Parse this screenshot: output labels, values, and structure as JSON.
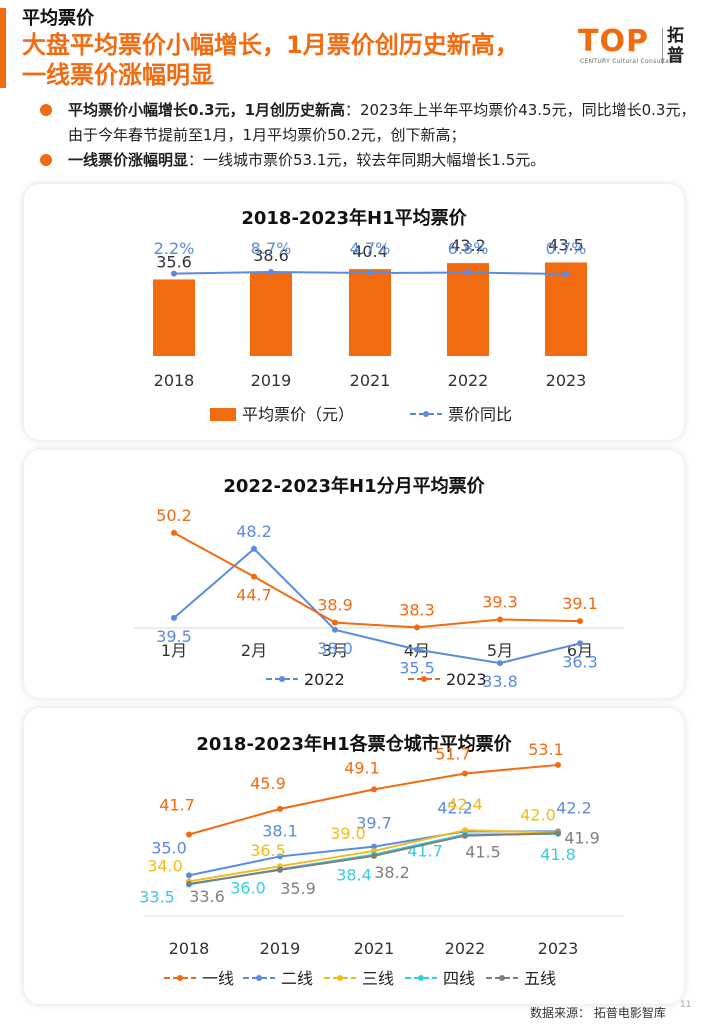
{
  "header": {
    "section": "平均票价",
    "headline_line1": "大盘平均票价小幅增长，1月票价创历史新高，",
    "headline_line2": "一线票价涨幅明显"
  },
  "logo": {
    "word": "TOP",
    "sub": "CENTURY Cultural Consultation",
    "cn": "拓普"
  },
  "bullets": [
    {
      "bold": "平均票价小幅增长0.3元，1月创历史新高",
      "text": "：2023年上半年平均票价43.5元，同比增长0.3元，由于今年春节提前至1月，1月平均票价50.2元，创下新高；"
    },
    {
      "bold": "一线票价涨幅明显",
      "text": "：一线城市票价53.1元，较去年同期大幅增长1.5元。"
    }
  ],
  "colors": {
    "orange": "#F26B10",
    "blue": "#5B8BE0",
    "yellow": "#F2BC1A",
    "cyan": "#35CDE0",
    "gray": "#7F7F7F"
  },
  "chart_data": [
    {
      "type": "bar",
      "title": "2018-2023年H1平均票价",
      "categories": [
        "2018",
        "2019",
        "2021",
        "2022",
        "2023"
      ],
      "series": [
        {
          "name": "平均票价（元）",
          "values": [
            35.6,
            38.6,
            40.4,
            43.2,
            43.5
          ],
          "labels": [
            "35.6",
            "38.6",
            "40.4",
            "43.2",
            "43.5"
          ]
        },
        {
          "name": "票价同比",
          "values": [
            2.2,
            8.7,
            4.7,
            6.8,
            0.7
          ],
          "labels": [
            "2.2%",
            "8.7%",
            "4.7%",
            "6.8%",
            "0.7%"
          ]
        }
      ],
      "legend": "bottom"
    },
    {
      "type": "line",
      "title": "2022-2023年H1分月平均票价",
      "categories": [
        "1月",
        "2月",
        "3月",
        "4月",
        "5月",
        "6月"
      ],
      "series": [
        {
          "name": "2022",
          "values": [
            39.5,
            48.2,
            38.0,
            35.5,
            33.8,
            36.3
          ],
          "labels": [
            "39.5",
            "48.2",
            "38.0",
            "35.5",
            "33.8",
            "36.3"
          ]
        },
        {
          "name": "2023",
          "values": [
            50.2,
            44.7,
            38.9,
            38.3,
            39.3,
            39.1
          ],
          "labels": [
            "50.2",
            "44.7",
            "38.9",
            "38.3",
            "39.3",
            "39.1"
          ]
        }
      ],
      "legend": "bottom"
    },
    {
      "type": "line",
      "title": "2018-2023年H1各票仓城市平均票价",
      "categories": [
        "2018",
        "2019",
        "2021",
        "2022",
        "2023"
      ],
      "series": [
        {
          "name": "一线",
          "values": [
            41.7,
            45.9,
            49.1,
            51.7,
            53.1
          ],
          "labels": [
            "41.7",
            "45.9",
            "49.1",
            "51.7",
            "53.1"
          ]
        },
        {
          "name": "二线",
          "values": [
            35.0,
            38.1,
            39.7,
            42.2,
            42.2
          ],
          "labels": [
            "35.0",
            "38.1",
            "39.7",
            "42.2",
            "42.2"
          ]
        },
        {
          "name": "三线",
          "values": [
            34.0,
            36.5,
            39.0,
            42.4,
            42.0
          ],
          "labels": [
            "34.0",
            "36.5",
            "39.0",
            "42.4",
            "42.0"
          ]
        },
        {
          "name": "四线",
          "values": [
            33.5,
            36.0,
            38.4,
            41.7,
            41.8
          ],
          "labels": [
            "33.5",
            "36.0",
            "38.4",
            "41.7",
            "41.8"
          ]
        },
        {
          "name": "五线",
          "values": [
            33.6,
            35.9,
            38.2,
            41.5,
            41.9
          ],
          "labels": [
            "33.6",
            "35.9",
            "38.2",
            "41.5",
            "41.9"
          ]
        }
      ],
      "legend": "bottom"
    }
  ],
  "footer": {
    "source": "数据来源：  拓普电影智库",
    "page": "11"
  }
}
